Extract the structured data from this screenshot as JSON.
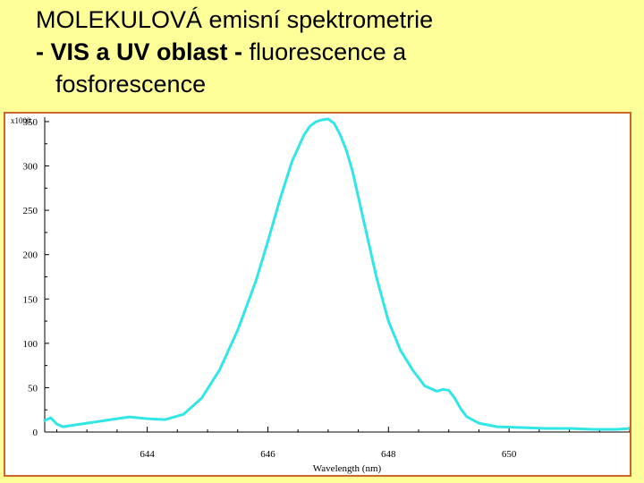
{
  "title": {
    "line1": "MOLEKULOVÁ emisní spektrometrie",
    "line2_bold": "- VIS a UV oblast - ",
    "line2_rest": "fluorescence a",
    "line3": "fosforescence"
  },
  "chart_data": {
    "type": "line",
    "title": "",
    "xlabel": "Wavelength (nm)",
    "ylabel": "",
    "y_scale_label": "x1000",
    "xlim": [
      642.3,
      652.0
    ],
    "ylim": [
      0,
      355
    ],
    "x_ticks": [
      644,
      646,
      648,
      650
    ],
    "y_ticks": [
      0,
      50,
      100,
      150,
      200,
      250,
      300,
      350
    ],
    "grid": false,
    "line_color": "#33e6e6",
    "series": [
      {
        "x": [
          642.3,
          642.4,
          642.5,
          642.6,
          642.8,
          643.0,
          643.2,
          643.4,
          643.7,
          644.0,
          644.3,
          644.6,
          644.9,
          645.2,
          645.5,
          645.8,
          646.0,
          646.2,
          646.4,
          646.6,
          646.7,
          646.8,
          646.9,
          647.0,
          647.1,
          647.2,
          647.3,
          647.4,
          647.5,
          647.6,
          647.8,
          648.0,
          648.2,
          648.4,
          648.6,
          648.8,
          648.9,
          649.0,
          649.1,
          649.2,
          649.3,
          649.5,
          649.8,
          650.2,
          650.6,
          651.0,
          651.4,
          651.8,
          652.0
        ],
        "y": [
          13,
          16,
          9,
          6,
          8,
          10,
          12,
          14,
          17,
          15,
          14,
          20,
          38,
          70,
          115,
          170,
          215,
          262,
          305,
          335,
          345,
          350,
          352,
          353,
          348,
          335,
          318,
          295,
          265,
          235,
          175,
          125,
          92,
          70,
          52,
          46,
          48,
          47,
          38,
          26,
          17,
          10,
          6,
          5,
          4,
          4,
          3,
          3,
          4
        ]
      }
    ]
  }
}
